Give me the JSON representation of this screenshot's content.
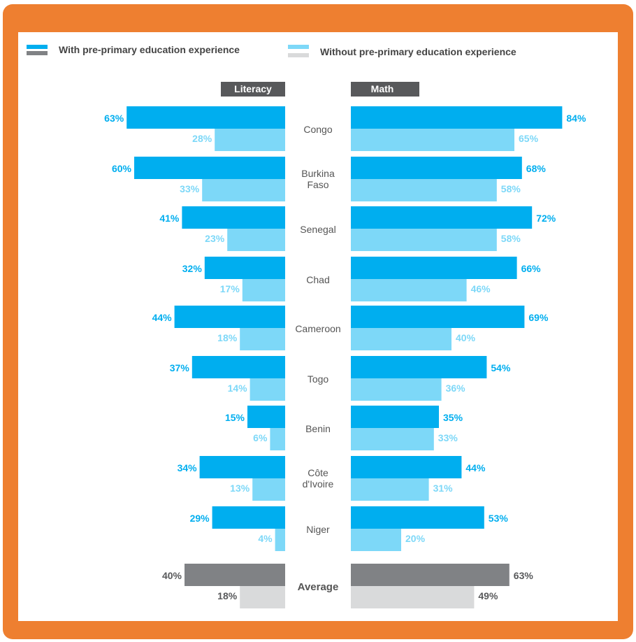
{
  "legend": {
    "with_label": "With pre-primary education experience",
    "without_label": "Without pre-primary education experience"
  },
  "colors": {
    "frame": "#ee7f30",
    "with": "#00aeef",
    "without": "#7dd8f8",
    "avg_with": "#808285",
    "avg_without": "#d9dadb",
    "title_bg": "#58595b"
  },
  "chart_data": {
    "type": "bar",
    "panels": [
      "Literacy",
      "Math"
    ],
    "categories": [
      [
        "Congo"
      ],
      [
        "Burkina",
        "Faso"
      ],
      [
        "Senegal"
      ],
      [
        "Chad"
      ],
      [
        "Cameroon"
      ],
      [
        "Togo"
      ],
      [
        "Benin"
      ],
      [
        "Côte",
        "d'Ivoire"
      ],
      [
        "Niger"
      ],
      [
        "Average"
      ]
    ],
    "series": [
      {
        "name": "With pre-primary education experience",
        "literacy": [
          63,
          60,
          41,
          32,
          44,
          37,
          15,
          34,
          29,
          40
        ],
        "math": [
          84,
          68,
          72,
          66,
          69,
          54,
          35,
          44,
          53,
          63
        ]
      },
      {
        "name": "Without pre-primary education experience",
        "literacy": [
          28,
          33,
          23,
          17,
          18,
          14,
          6,
          13,
          4,
          18
        ],
        "math": [
          65,
          58,
          58,
          46,
          40,
          36,
          33,
          31,
          20,
          49
        ]
      }
    ],
    "value_suffix": "%"
  }
}
